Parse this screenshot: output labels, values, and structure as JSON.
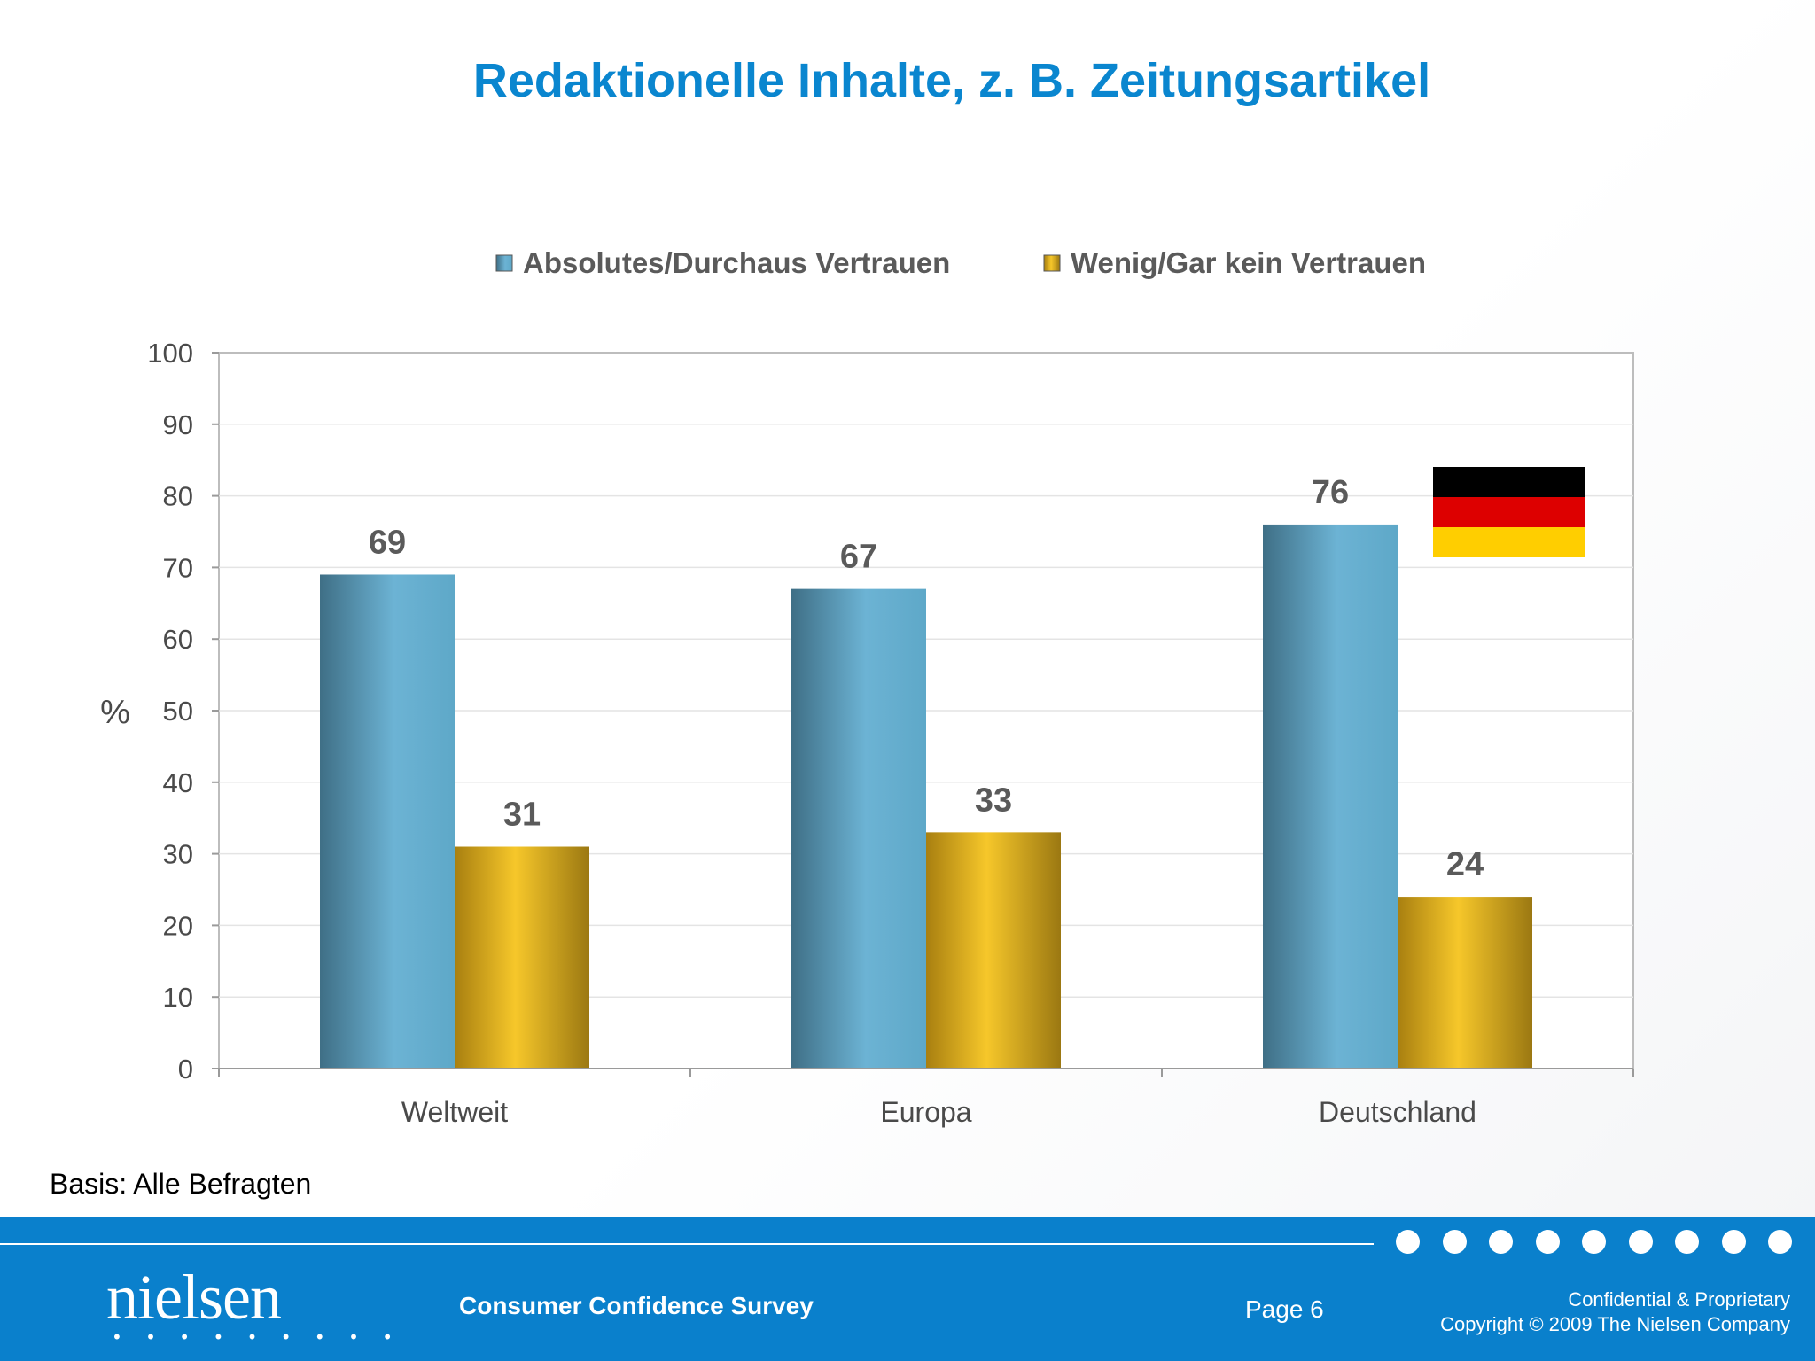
{
  "slide": {
    "title": "Redaktionelle Inhalte, z. B. Zeitungsartikel",
    "basis": "Basis: Alle Befragten"
  },
  "chart_data": {
    "type": "bar",
    "title": "",
    "ylabel": "%",
    "xlabel": "",
    "ylim": [
      0,
      100
    ],
    "yticks": [
      0,
      10,
      20,
      30,
      40,
      50,
      60,
      70,
      80,
      90,
      100
    ],
    "grid": true,
    "legend_position": "top",
    "categories": [
      "Weltweit",
      "Europa",
      "Deutschland"
    ],
    "series": [
      {
        "name": "Absolutes/Durchaus Vertrauen",
        "values": [
          69,
          67,
          76
        ],
        "color": "#5ea8c8"
      },
      {
        "name": "Wenig/Gar kein Vertrauen",
        "values": [
          31,
          33,
          24
        ],
        "color": "#f2bf1a"
      }
    ]
  },
  "flag": {
    "name": "german-flag-icon",
    "colors": [
      "#000000",
      "#dd0000",
      "#ffce00"
    ]
  },
  "footer": {
    "brand": "nielsen",
    "brand_dots": "• • • • • • • • •",
    "survey": "Consumer Confidence Survey",
    "page": "Page 6",
    "confidential": "Confidential & Proprietary",
    "copyright": "Copyright © 2009 The Nielsen Company",
    "accent": "#0a80cc"
  }
}
